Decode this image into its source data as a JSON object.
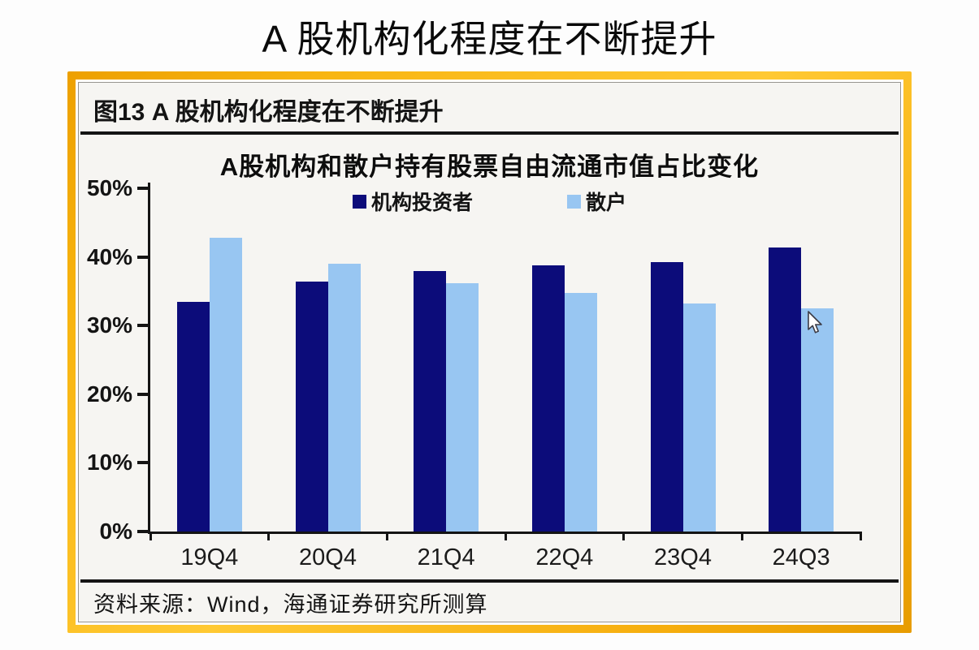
{
  "page": {
    "title": "A 股机构化程度在不断提升"
  },
  "figure": {
    "header": "图13 A 股机构化程度在不断提升",
    "source": "资料来源：Wind，海通证券研究所测算"
  },
  "colors": {
    "frame_gold": "#f6ae0e",
    "institutional_navy": "#0c0c7a",
    "retail_light_blue": "#98c6f2",
    "axis_black": "#141414",
    "content_background": "#f6f5f2"
  },
  "chart_data": {
    "type": "bar",
    "title": "A股机构和散户持有股票自由流通市值占比变化",
    "categories": [
      "19Q4",
      "20Q4",
      "21Q4",
      "22Q4",
      "23Q4",
      "24Q3"
    ],
    "series": [
      {
        "key": "institutional",
        "name": "机构投资者",
        "color": "#0c0c7a",
        "values": [
          33.5,
          36.4,
          37.9,
          38.8,
          39.2,
          41.4
        ]
      },
      {
        "key": "retail",
        "name": "散户",
        "color": "#98c6f2",
        "values": [
          42.8,
          39.0,
          36.2,
          34.8,
          33.2,
          32.5
        ]
      }
    ],
    "ylim": [
      0,
      50
    ],
    "yticks": [
      50,
      40,
      30,
      20,
      10,
      0
    ],
    "ytick_suffix": "%",
    "xlabel": "",
    "ylabel": "",
    "grid": false,
    "legend_position": "top-center"
  }
}
